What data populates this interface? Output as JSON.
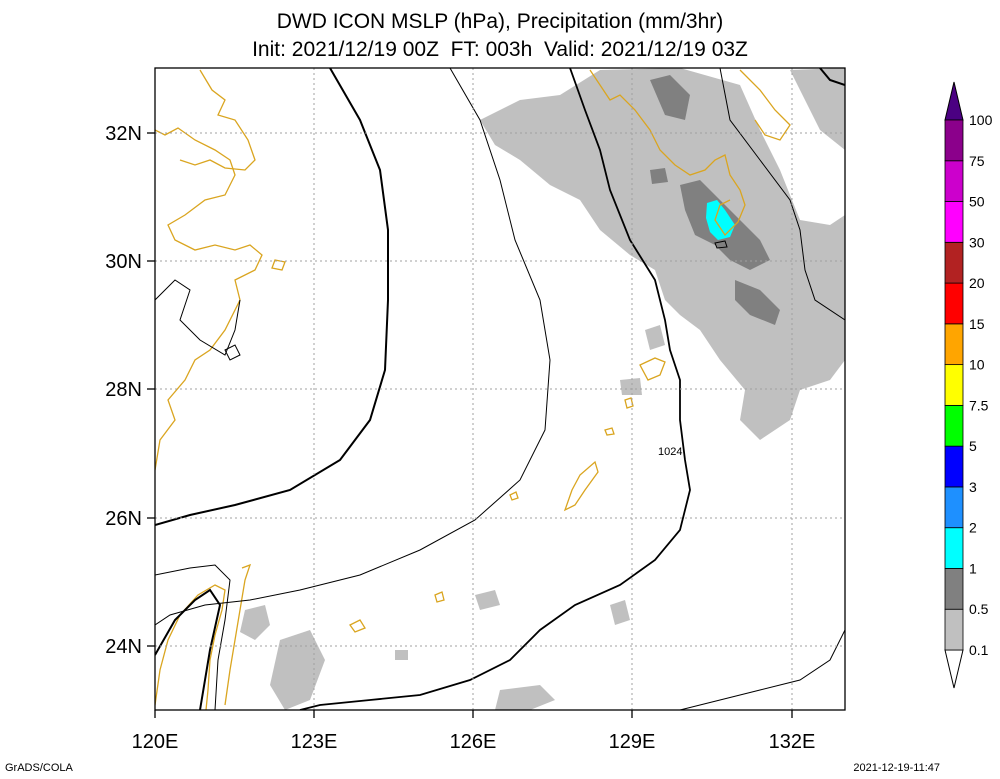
{
  "title": {
    "line1": "DWD ICON MSLP (hPa), Precipitation (mm/3hr)",
    "line2": "Init: 2021/12/19 00Z  FT: 003h  Valid: 2021/12/19 03Z"
  },
  "map": {
    "lon_range": [
      120,
      133
    ],
    "lat_range": [
      23,
      33
    ],
    "x_ticks": [
      "120E",
      "123E",
      "126E",
      "129E",
      "132E"
    ],
    "y_ticks": [
      "32N",
      "30N",
      "28N",
      "26N",
      "24N"
    ],
    "grid": "dotted",
    "isobar_label": "1024"
  },
  "colorbar": {
    "labels": [
      "0.1",
      "0.5",
      "1",
      "2",
      "3",
      "5",
      "7.5",
      "10",
      "15",
      "20",
      "30",
      "50",
      "75",
      "100"
    ],
    "colors": [
      "#ffffff",
      "#c0c0c0",
      "#808080",
      "#00ffff",
      "#1e90ff",
      "#0000ff",
      "#00ff00",
      "#ffff00",
      "#ffa500",
      "#ff0000",
      "#b22222",
      "#ff00ff",
      "#cc00cc",
      "#8b008b",
      "#4b0082"
    ]
  },
  "footer": {
    "left": "GrADS/COLA",
    "right": "2021-12-19-11:47"
  }
}
